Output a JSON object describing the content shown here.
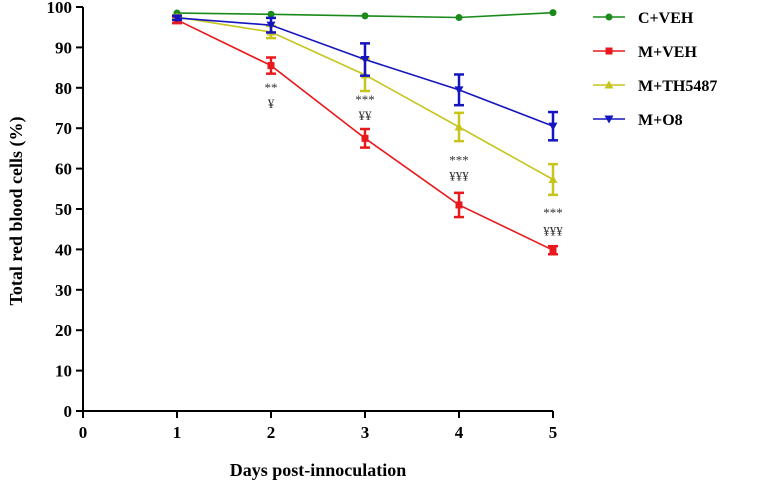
{
  "chart_data": {
    "type": "line",
    "title": "",
    "xlabel": "Days post-innoculation",
    "ylabel": "Total red blood cells (%)",
    "xlim": [
      0,
      5
    ],
    "ylim": [
      0,
      100
    ],
    "x_ticks": [
      0,
      1,
      2,
      3,
      4,
      5
    ],
    "y_ticks": [
      0,
      10,
      20,
      30,
      40,
      50,
      60,
      70,
      80,
      90,
      100
    ],
    "grid": false,
    "legend_position": "top-right",
    "x": [
      1,
      2,
      3,
      4,
      5
    ],
    "series": [
      {
        "name": "C+VEH",
        "color": "#1a8a1a",
        "marker": "circle",
        "values": [
          98.5,
          98.2,
          97.8,
          97.4,
          98.6
        ],
        "errors": [
          0,
          0,
          0,
          0,
          0
        ]
      },
      {
        "name": "M+VEH",
        "color": "#e8191c",
        "marker": "square",
        "values": [
          96.8,
          85.5,
          67.5,
          51.0,
          39.8
        ],
        "errors": [
          0.8,
          2.0,
          2.3,
          3.0,
          1.0
        ]
      },
      {
        "name": "M+TH5487",
        "color": "#c8c41e",
        "marker": "triangle-up",
        "values": [
          97.5,
          93.8,
          83.2,
          70.3,
          57.3
        ],
        "errors": [
          0.5,
          1.5,
          4.0,
          3.5,
          3.8
        ]
      },
      {
        "name": "M+O8",
        "color": "#1515c0",
        "marker": "triangle-down",
        "values": [
          97.3,
          95.5,
          87.0,
          79.5,
          70.5
        ],
        "errors": [
          0.5,
          1.8,
          4.0,
          3.8,
          3.5
        ]
      }
    ],
    "annotations": [
      {
        "x": 2,
        "y": 79,
        "text": "**"
      },
      {
        "x": 2,
        "y": 75,
        "text": "¥"
      },
      {
        "x": 3,
        "y": 76,
        "text": "***"
      },
      {
        "x": 3,
        "y": 72,
        "text": "¥¥"
      },
      {
        "x": 4,
        "y": 61,
        "text": "***"
      },
      {
        "x": 4,
        "y": 57,
        "text": "¥¥¥"
      },
      {
        "x": 5,
        "y": 48,
        "text": "***"
      },
      {
        "x": 5,
        "y": 43.5,
        "text": "¥¥¥"
      }
    ]
  }
}
